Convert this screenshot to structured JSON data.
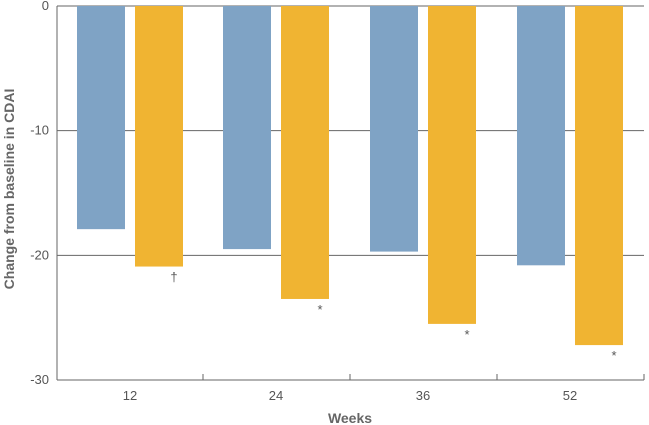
{
  "chart_data": {
    "type": "bar",
    "title": "",
    "xlabel": "Weeks",
    "ylabel": "Change from baseline in CDAI",
    "categories": [
      "12",
      "24",
      "36",
      "52"
    ],
    "ylim": [
      -30,
      0
    ],
    "yticks": [
      0,
      -10,
      -20,
      -30
    ],
    "grid": true,
    "series": [
      {
        "color": "#7fa3c5",
        "values": [
          -17.9,
          -19.5,
          -19.7,
          -20.8
        ]
      },
      {
        "color": "#f0b432",
        "values": [
          -20.9,
          -23.5,
          -25.5,
          -27.2
        ]
      }
    ],
    "annotations": [
      {
        "category": "12",
        "series_index": 1,
        "text": "†"
      },
      {
        "category": "24",
        "series_index": 1,
        "text": "*"
      },
      {
        "category": "36",
        "series_index": 1,
        "text": "*"
      },
      {
        "category": "52",
        "series_index": 1,
        "text": "*"
      }
    ]
  }
}
